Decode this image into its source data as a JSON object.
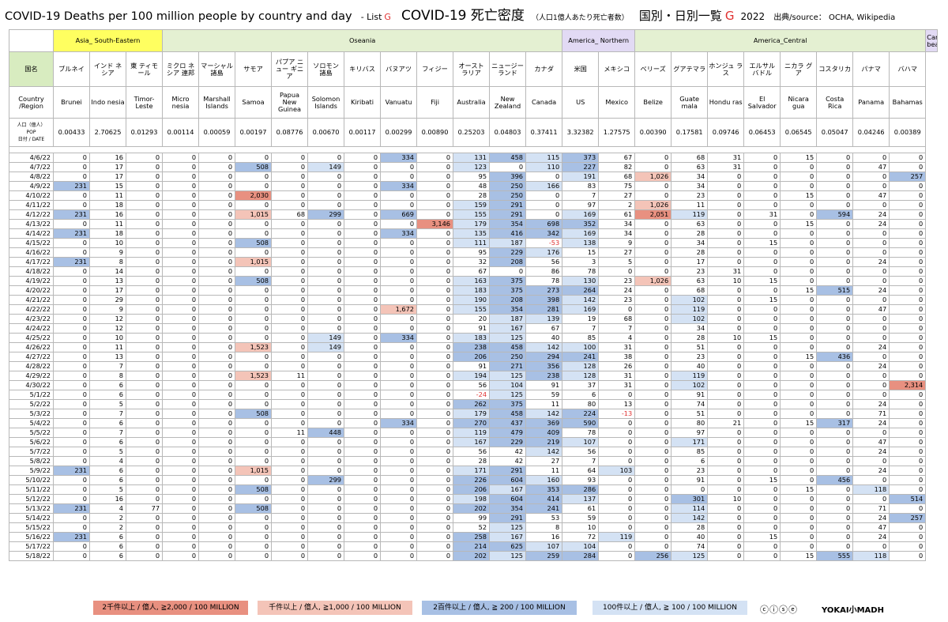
{
  "title": {
    "en": "COVID-19 Deaths per 100 million people by country and day",
    "list": "- List",
    "list_letter": "G",
    "jp": "COVID-19 死亡密度",
    "jp_sub": "（人口1億人あたり死亡者数）",
    "jp2a": "国別・日別一覧",
    "jp2_letter": "G",
    "year": "2022",
    "source": "出典/source： OCHA, Wikipedia"
  },
  "regions": [
    {
      "name": "Asia_ South-Eastern",
      "span": 3,
      "cls": "r-asia"
    },
    {
      "name": "Oseania",
      "span": 11,
      "cls": "r-oce"
    },
    {
      "name": "America_ Northern",
      "span": 2,
      "cls": "r-amn"
    },
    {
      "name": "America_Central",
      "span": 8,
      "cls": "r-amc"
    },
    {
      "name": "Carib bean",
      "span": 1,
      "cls": "r-car"
    }
  ],
  "labels": {
    "kokumei": "国名",
    "country_region": "Country /Region",
    "pop_jp": "人口（億人）",
    "pop_en": "POP",
    "date_label": "日付 / DATE"
  },
  "countries": [
    {
      "jp": "ブルネイ",
      "en": "Brunei",
      "pop": "0.00433"
    },
    {
      "jp": "インド ネシア",
      "en": "Indo nesia",
      "pop": "2.70625"
    },
    {
      "jp": "東 ティモール",
      "en": "Timor- Leste",
      "pop": "0.01293"
    },
    {
      "jp": "ミクロ ネシア 連邦",
      "en": "Micro nesia",
      "pop": "0.00114"
    },
    {
      "jp": "マーシャル 諸島",
      "en": "Marshall Islands",
      "pop": "0.00059"
    },
    {
      "jp": "サモア",
      "en": "Samoa",
      "pop": "0.00197"
    },
    {
      "jp": "パプア ニュー ギニア",
      "en": "Papua New Guinea",
      "pop": "0.08776"
    },
    {
      "jp": "ソロモン 諸島",
      "en": "Solomon Islands",
      "pop": "0.00670"
    },
    {
      "jp": "キリバス",
      "en": "Kiribati",
      "pop": "0.00117"
    },
    {
      "jp": "バヌアツ",
      "en": "Vanuatu",
      "pop": "0.00299"
    },
    {
      "jp": "フィジー",
      "en": "Fiji",
      "pop": "0.00890"
    },
    {
      "jp": "オースト ラリア",
      "en": "Australia",
      "pop": "0.25203"
    },
    {
      "jp": "ニュージー ランド",
      "en": "New Zealand",
      "pop": "0.04803"
    },
    {
      "jp": "カナダ",
      "en": "Canada",
      "pop": "0.37411"
    },
    {
      "jp": "米国",
      "en": "US",
      "pop": "3.32382"
    },
    {
      "jp": "メキシコ",
      "en": "Mexico",
      "pop": "1.27575"
    },
    {
      "jp": "ベリーズ",
      "en": "Belize",
      "pop": "0.00390"
    },
    {
      "jp": "グアテマラ",
      "en": "Guate mala",
      "pop": "0.17581"
    },
    {
      "jp": "ホンジュ ラス",
      "en": "Hondu ras",
      "pop": "0.09746"
    },
    {
      "jp": "エルサル バドル",
      "en": "El Salvador",
      "pop": "0.06453"
    },
    {
      "jp": "ニカラ グア",
      "en": "Nicara gua",
      "pop": "0.06545"
    },
    {
      "jp": "コスタリカ",
      "en": "Costa Rica",
      "pop": "0.05047"
    },
    {
      "jp": "パナマ",
      "en": "Panama",
      "pop": "0.04246"
    },
    {
      "jp": "バハマ",
      "en": "Bahamas",
      "pop": "0.00389"
    }
  ],
  "rows": [
    {
      "date": "4/6/22",
      "v": [
        "0",
        "16",
        "0",
        "0",
        "0",
        "0",
        "0",
        "0",
        "0",
        "334",
        "0",
        "131",
        "458",
        "115",
        "373",
        "67",
        "0",
        "68",
        "31",
        "0",
        "15",
        "0",
        "0",
        "0"
      ]
    },
    {
      "date": "4/7/22",
      "v": [
        "0",
        "17",
        "0",
        "0",
        "0",
        "508",
        "0",
        "149",
        "0",
        "0",
        "0",
        "123",
        "0",
        "110",
        "227",
        "82",
        "0",
        "63",
        "31",
        "0",
        "0",
        "0",
        "47",
        "0"
      ]
    },
    {
      "date": "4/8/22",
      "v": [
        "0",
        "17",
        "0",
        "0",
        "0",
        "0",
        "0",
        "0",
        "0",
        "0",
        "0",
        "95",
        "396",
        "0",
        "191",
        "68",
        "1,026",
        "34",
        "0",
        "0",
        "0",
        "0",
        "0",
        "257"
      ]
    },
    {
      "date": "4/9/22",
      "v": [
        "231",
        "15",
        "0",
        "0",
        "0",
        "0",
        "0",
        "0",
        "0",
        "334",
        "0",
        "48",
        "250",
        "166",
        "83",
        "75",
        "0",
        "34",
        "0",
        "0",
        "0",
        "0",
        "0",
        "0"
      ]
    },
    {
      "date": "4/10/22",
      "v": [
        "0",
        "11",
        "0",
        "0",
        "0",
        "2,030",
        "0",
        "0",
        "0",
        "0",
        "0",
        "28",
        "250",
        "0",
        "7",
        "27",
        "0",
        "23",
        "0",
        "0",
        "15",
        "0",
        "47",
        "0"
      ]
    },
    {
      "date": "4/11/22",
      "v": [
        "0",
        "18",
        "0",
        "0",
        "0",
        "0",
        "0",
        "0",
        "0",
        "0",
        "0",
        "159",
        "291",
        "0",
        "97",
        "2",
        "1,026",
        "11",
        "0",
        "0",
        "0",
        "0",
        "0",
        "0"
      ]
    },
    {
      "date": "4/12/22",
      "v": [
        "231",
        "16",
        "0",
        "0",
        "0",
        "1,015",
        "68",
        "299",
        "0",
        "669",
        "0",
        "155",
        "291",
        "0",
        "169",
        "61",
        "2,051",
        "119",
        "0",
        "31",
        "0",
        "594",
        "24",
        "0"
      ]
    },
    {
      "date": "4/13/22",
      "v": [
        "0",
        "11",
        "0",
        "0",
        "0",
        "0",
        "0",
        "0",
        "0",
        "0",
        "3,146",
        "179",
        "354",
        "698",
        "352",
        "34",
        "0",
        "63",
        "0",
        "0",
        "15",
        "0",
        "24",
        "0"
      ]
    },
    {
      "date": "4/14/22",
      "v": [
        "231",
        "18",
        "0",
        "0",
        "0",
        "0",
        "0",
        "0",
        "0",
        "334",
        "0",
        "135",
        "416",
        "342",
        "169",
        "34",
        "0",
        "28",
        "0",
        "0",
        "0",
        "0",
        "0",
        "0"
      ]
    },
    {
      "date": "4/15/22",
      "v": [
        "0",
        "10",
        "0",
        "0",
        "0",
        "508",
        "0",
        "0",
        "0",
        "0",
        "0",
        "111",
        "187",
        "-53",
        "138",
        "9",
        "0",
        "34",
        "0",
        "15",
        "0",
        "0",
        "0",
        "0"
      ]
    },
    {
      "date": "4/16/22",
      "v": [
        "0",
        "9",
        "0",
        "0",
        "0",
        "0",
        "0",
        "0",
        "0",
        "0",
        "0",
        "95",
        "229",
        "176",
        "15",
        "27",
        "0",
        "28",
        "0",
        "0",
        "0",
        "0",
        "0",
        "0"
      ]
    },
    {
      "date": "4/17/22",
      "v": [
        "231",
        "8",
        "0",
        "0",
        "0",
        "1,015",
        "0",
        "0",
        "0",
        "0",
        "0",
        "32",
        "208",
        "56",
        "3",
        "5",
        "0",
        "17",
        "0",
        "0",
        "0",
        "0",
        "24",
        "0"
      ]
    },
    {
      "date": "4/18/22",
      "v": [
        "0",
        "14",
        "0",
        "0",
        "0",
        "0",
        "0",
        "0",
        "0",
        "0",
        "0",
        "67",
        "0",
        "86",
        "78",
        "0",
        "0",
        "23",
        "31",
        "0",
        "0",
        "0",
        "0",
        "0"
      ]
    },
    {
      "date": "4/19/22",
      "v": [
        "0",
        "13",
        "0",
        "0",
        "0",
        "508",
        "0",
        "0",
        "0",
        "0",
        "0",
        "163",
        "375",
        "78",
        "130",
        "23",
        "1,026",
        "63",
        "10",
        "15",
        "0",
        "0",
        "0",
        "0"
      ]
    },
    {
      "date": "4/20/22",
      "v": [
        "0",
        "17",
        "0",
        "0",
        "0",
        "0",
        "0",
        "0",
        "0",
        "0",
        "0",
        "183",
        "375",
        "273",
        "264",
        "24",
        "0",
        "68",
        "0",
        "0",
        "15",
        "515",
        "24",
        "0"
      ]
    },
    {
      "date": "4/21/22",
      "v": [
        "0",
        "29",
        "0",
        "0",
        "0",
        "0",
        "0",
        "0",
        "0",
        "0",
        "0",
        "190",
        "208",
        "398",
        "142",
        "23",
        "0",
        "102",
        "0",
        "15",
        "0",
        "0",
        "0",
        "0"
      ]
    },
    {
      "date": "4/22/22",
      "v": [
        "0",
        "9",
        "0",
        "0",
        "0",
        "0",
        "0",
        "0",
        "0",
        "1,672",
        "0",
        "155",
        "354",
        "281",
        "169",
        "0",
        "0",
        "119",
        "0",
        "0",
        "0",
        "0",
        "47",
        "0"
      ]
    },
    {
      "date": "4/23/22",
      "v": [
        "0",
        "12",
        "0",
        "0",
        "0",
        "0",
        "0",
        "0",
        "0",
        "0",
        "0",
        "20",
        "187",
        "139",
        "19",
        "68",
        "0",
        "102",
        "0",
        "0",
        "0",
        "0",
        "0",
        "0"
      ]
    },
    {
      "date": "4/24/22",
      "v": [
        "0",
        "12",
        "0",
        "0",
        "0",
        "0",
        "0",
        "0",
        "0",
        "0",
        "0",
        "91",
        "167",
        "67",
        "7",
        "7",
        "0",
        "34",
        "0",
        "0",
        "0",
        "0",
        "0",
        "0"
      ]
    },
    {
      "date": "4/25/22",
      "v": [
        "0",
        "10",
        "0",
        "0",
        "0",
        "0",
        "0",
        "149",
        "0",
        "334",
        "0",
        "183",
        "125",
        "40",
        "85",
        "4",
        "0",
        "28",
        "10",
        "15",
        "0",
        "0",
        "0",
        "0"
      ]
    },
    {
      "date": "4/26/22",
      "v": [
        "0",
        "11",
        "0",
        "0",
        "0",
        "1,523",
        "0",
        "149",
        "0",
        "0",
        "0",
        "238",
        "458",
        "142",
        "100",
        "31",
        "0",
        "51",
        "0",
        "0",
        "0",
        "0",
        "24",
        "0"
      ]
    },
    {
      "date": "4/27/22",
      "v": [
        "0",
        "13",
        "0",
        "0",
        "0",
        "0",
        "0",
        "0",
        "0",
        "0",
        "0",
        "206",
        "250",
        "294",
        "241",
        "38",
        "0",
        "23",
        "0",
        "0",
        "15",
        "436",
        "0",
        "0"
      ]
    },
    {
      "date": "4/28/22",
      "v": [
        "0",
        "7",
        "0",
        "0",
        "0",
        "0",
        "0",
        "0",
        "0",
        "0",
        "0",
        "91",
        "271",
        "356",
        "128",
        "26",
        "0",
        "40",
        "0",
        "0",
        "0",
        "0",
        "24",
        "0"
      ]
    },
    {
      "date": "4/29/22",
      "v": [
        "0",
        "8",
        "0",
        "0",
        "0",
        "1,523",
        "11",
        "0",
        "0",
        "0",
        "0",
        "194",
        "125",
        "238",
        "128",
        "31",
        "0",
        "119",
        "0",
        "0",
        "0",
        "0",
        "0",
        "0"
      ]
    },
    {
      "date": "4/30/22",
      "v": [
        "0",
        "6",
        "0",
        "0",
        "0",
        "0",
        "0",
        "0",
        "0",
        "0",
        "0",
        "56",
        "104",
        "91",
        "37",
        "31",
        "0",
        "102",
        "0",
        "0",
        "0",
        "0",
        "0",
        "2,314"
      ]
    },
    {
      "date": "5/1/22",
      "v": [
        "0",
        "6",
        "0",
        "0",
        "0",
        "0",
        "0",
        "0",
        "0",
        "0",
        "0",
        "-24",
        "125",
        "59",
        "6",
        "0",
        "0",
        "91",
        "0",
        "0",
        "0",
        "0",
        "0",
        "0"
      ]
    },
    {
      "date": "5/2/22",
      "v": [
        "0",
        "5",
        "0",
        "0",
        "0",
        "0",
        "0",
        "0",
        "0",
        "0",
        "0",
        "262",
        "375",
        "11",
        "80",
        "13",
        "0",
        "74",
        "0",
        "0",
        "0",
        "0",
        "24",
        "0"
      ]
    },
    {
      "date": "5/3/22",
      "v": [
        "0",
        "7",
        "0",
        "0",
        "0",
        "508",
        "0",
        "0",
        "0",
        "0",
        "0",
        "179",
        "458",
        "142",
        "224",
        "-13",
        "0",
        "51",
        "0",
        "0",
        "0",
        "0",
        "71",
        "0"
      ]
    },
    {
      "date": "5/4/22",
      "v": [
        "0",
        "6",
        "0",
        "0",
        "0",
        "0",
        "0",
        "0",
        "0",
        "334",
        "0",
        "270",
        "437",
        "369",
        "590",
        "0",
        "0",
        "80",
        "21",
        "0",
        "15",
        "317",
        "24",
        "0"
      ]
    },
    {
      "date": "5/5/22",
      "v": [
        "0",
        "7",
        "0",
        "0",
        "0",
        "0",
        "11",
        "448",
        "0",
        "0",
        "0",
        "119",
        "479",
        "409",
        "78",
        "0",
        "0",
        "97",
        "0",
        "0",
        "0",
        "0",
        "0",
        "0"
      ]
    },
    {
      "date": "5/6/22",
      "v": [
        "0",
        "6",
        "0",
        "0",
        "0",
        "0",
        "0",
        "0",
        "0",
        "0",
        "0",
        "167",
        "229",
        "219",
        "107",
        "0",
        "0",
        "171",
        "0",
        "0",
        "0",
        "0",
        "47",
        "0"
      ]
    },
    {
      "date": "5/7/22",
      "v": [
        "0",
        "5",
        "0",
        "0",
        "0",
        "0",
        "0",
        "0",
        "0",
        "0",
        "0",
        "56",
        "42",
        "142",
        "56",
        "0",
        "0",
        "85",
        "0",
        "0",
        "0",
        "0",
        "24",
        "0"
      ]
    },
    {
      "date": "5/8/22",
      "v": [
        "0",
        "4",
        "0",
        "0",
        "0",
        "0",
        "0",
        "0",
        "0",
        "0",
        "0",
        "28",
        "42",
        "27",
        "7",
        "0",
        "0",
        "6",
        "0",
        "0",
        "0",
        "0",
        "0",
        "0"
      ]
    },
    {
      "date": "5/9/22",
      "v": [
        "231",
        "6",
        "0",
        "0",
        "0",
        "1,015",
        "0",
        "0",
        "0",
        "0",
        "0",
        "171",
        "291",
        "11",
        "64",
        "103",
        "0",
        "23",
        "0",
        "0",
        "0",
        "0",
        "24",
        "0"
      ]
    },
    {
      "date": "5/10/22",
      "v": [
        "0",
        "6",
        "0",
        "0",
        "0",
        "0",
        "0",
        "299",
        "0",
        "0",
        "0",
        "226",
        "604",
        "160",
        "93",
        "0",
        "0",
        "91",
        "0",
        "15",
        "0",
        "456",
        "0",
        "0"
      ]
    },
    {
      "date": "5/11/22",
      "v": [
        "0",
        "5",
        "0",
        "0",
        "0",
        "508",
        "0",
        "0",
        "0",
        "0",
        "0",
        "206",
        "167",
        "353",
        "286",
        "0",
        "0",
        "0",
        "0",
        "0",
        "15",
        "0",
        "118",
        "0"
      ]
    },
    {
      "date": "5/12/22",
      "v": [
        "0",
        "16",
        "0",
        "0",
        "0",
        "0",
        "0",
        "0",
        "0",
        "0",
        "0",
        "198",
        "604",
        "414",
        "137",
        "0",
        "0",
        "301",
        "10",
        "0",
        "0",
        "0",
        "0",
        "514"
      ]
    },
    {
      "date": "5/13/22",
      "v": [
        "231",
        "4",
        "77",
        "0",
        "0",
        "508",
        "0",
        "0",
        "0",
        "0",
        "0",
        "202",
        "354",
        "241",
        "61",
        "0",
        "0",
        "114",
        "0",
        "0",
        "0",
        "0",
        "71",
        "0"
      ]
    },
    {
      "date": "5/14/22",
      "v": [
        "0",
        "2",
        "0",
        "0",
        "0",
        "0",
        "0",
        "0",
        "0",
        "0",
        "0",
        "99",
        "291",
        "53",
        "59",
        "0",
        "0",
        "142",
        "0",
        "0",
        "0",
        "0",
        "24",
        "257"
      ]
    },
    {
      "date": "5/15/22",
      "v": [
        "0",
        "2",
        "0",
        "0",
        "0",
        "0",
        "0",
        "0",
        "0",
        "0",
        "0",
        "52",
        "125",
        "8",
        "10",
        "0",
        "0",
        "28",
        "0",
        "0",
        "0",
        "0",
        "47",
        "0"
      ]
    },
    {
      "date": "5/16/22",
      "v": [
        "231",
        "6",
        "0",
        "0",
        "0",
        "0",
        "0",
        "0",
        "0",
        "0",
        "0",
        "258",
        "167",
        "16",
        "72",
        "119",
        "0",
        "40",
        "0",
        "15",
        "0",
        "0",
        "24",
        "0"
      ]
    },
    {
      "date": "5/17/22",
      "v": [
        "0",
        "6",
        "0",
        "0",
        "0",
        "0",
        "0",
        "0",
        "0",
        "0",
        "0",
        "214",
        "625",
        "107",
        "104",
        "0",
        "0",
        "74",
        "0",
        "0",
        "0",
        "0",
        "0",
        "0"
      ]
    },
    {
      "date": "5/18/22",
      "v": [
        "0",
        "6",
        "0",
        "0",
        "0",
        "0",
        "0",
        "0",
        "0",
        "0",
        "0",
        "202",
        "125",
        "259",
        "284",
        "0",
        "256",
        "125",
        "0",
        "0",
        "15",
        "555",
        "118",
        "0"
      ]
    }
  ],
  "legend": {
    "l2000": "2千件以上 / 億人, ≧2,000 / 100 MILLION",
    "l1000": "千件以上 / 億人, ≧1,000 / 100 MILLION",
    "l200": "2百件以上 / 億人, ≧ 200 / 100 MILLION",
    "l100": "100件以上 / 億人, ≧ 100 / 100 MILLION"
  },
  "credit": {
    "cc": "ⓒⓘⓢⓔ",
    "logo": "YOKAI小MADH"
  },
  "colors": {
    "c2000": "#e89080",
    "c1000": "#f4c4b8",
    "c200": "#a8c0e4",
    "c100": "#d4e2f4",
    "negative": "#e03030"
  }
}
